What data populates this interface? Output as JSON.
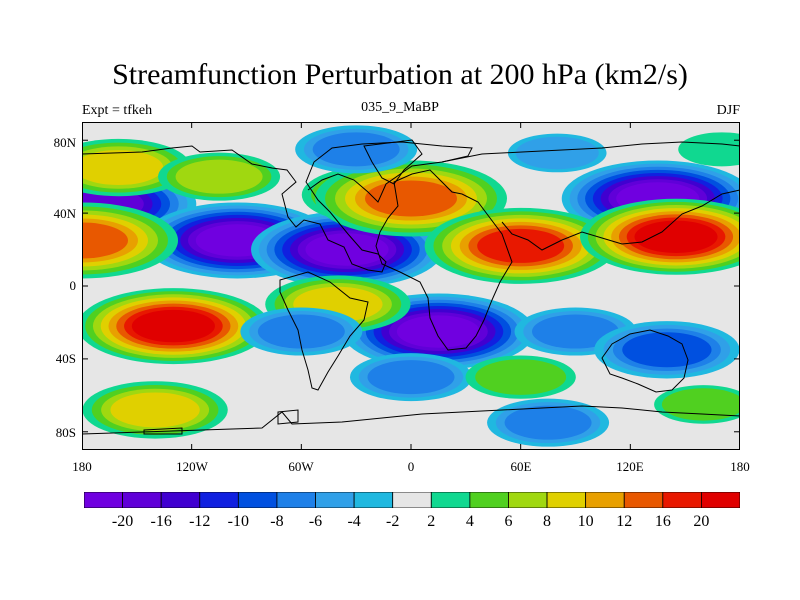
{
  "title": "Streamfunction Perturbation at 200 hPa (km2/s)",
  "left_string": "Expt = tfkeh",
  "center_string": "035_9_MaBP",
  "right_string": "DJF",
  "lat_labels": [
    "80N",
    "40N",
    "0",
    "40S",
    "80S"
  ],
  "lon_labels": [
    "180",
    "120W",
    "60W",
    "0",
    "60E",
    "120E",
    "180"
  ],
  "colorbar": {
    "labels": [
      "-20",
      "-16",
      "-12",
      "-10",
      "-8",
      "-6",
      "-4",
      "-2",
      "2",
      "4",
      "6",
      "8",
      "10",
      "12",
      "16",
      "20"
    ],
    "colors": [
      "#7000e0",
      "#6000d8",
      "#4000d0",
      "#1020e0",
      "#0050e0",
      "#1e80e8",
      "#30a0e8",
      "#20b8e0",
      "#e6e6e6",
      "#10d890",
      "#50d020",
      "#a0d810",
      "#e0d000",
      "#e8a000",
      "#e85800",
      "#e81800",
      "#e00000"
    ]
  },
  "chart_data": {
    "type": "heatmap",
    "title": "Streamfunction Perturbation at 200 hPa (km2/s)",
    "field": "streamfunction perturbation",
    "units": "km2/s",
    "level_hPa": 200,
    "x_range": [
      -180,
      180
    ],
    "y_range": [
      -90,
      90
    ],
    "contour_levels": [
      -20,
      -16,
      -12,
      -10,
      -8,
      -6,
      -4,
      -2,
      2,
      4,
      6,
      8,
      10,
      12,
      16,
      20
    ],
    "features": [
      {
        "lon": -170,
        "lat": 45,
        "value": -18
      },
      {
        "lon": -95,
        "lat": 25,
        "value": -22
      },
      {
        "lon": -35,
        "lat": 20,
        "value": -22
      },
      {
        "lon": 15,
        "lat": -25,
        "value": -20
      },
      {
        "lon": 135,
        "lat": 48,
        "value": -20
      },
      {
        "lon": -160,
        "lat": 65,
        "value": 8
      },
      {
        "lon": -105,
        "lat": 60,
        "value": 6
      },
      {
        "lon": -20,
        "lat": 50,
        "value": 8
      },
      {
        "lon": 0,
        "lat": 48,
        "value": 14
      },
      {
        "lon": 60,
        "lat": 22,
        "value": 16
      },
      {
        "lon": 145,
        "lat": 27,
        "value": 22
      },
      {
        "lon": -180,
        "lat": 25,
        "value": 12
      },
      {
        "lon": -130,
        "lat": -22,
        "value": 20
      },
      {
        "lon": -40,
        "lat": -10,
        "value": 8
      },
      {
        "lon": -60,
        "lat": -25,
        "value": -6
      },
      {
        "lon": 90,
        "lat": -25,
        "value": -6
      },
      {
        "lon": 140,
        "lat": -35,
        "value": -8
      },
      {
        "lon": 0,
        "lat": -50,
        "value": -6
      },
      {
        "lon": 60,
        "lat": -50,
        "value": 5
      },
      {
        "lon": -140,
        "lat": -68,
        "value": 8
      },
      {
        "lon": 160,
        "lat": -65,
        "value": 4
      },
      {
        "lon": 75,
        "lat": -75,
        "value": -6
      },
      {
        "lon": -30,
        "lat": 75,
        "value": -6
      },
      {
        "lon": 80,
        "lat": 73,
        "value": -4
      },
      {
        "lon": 170,
        "lat": 75,
        "value": 3
      }
    ]
  }
}
